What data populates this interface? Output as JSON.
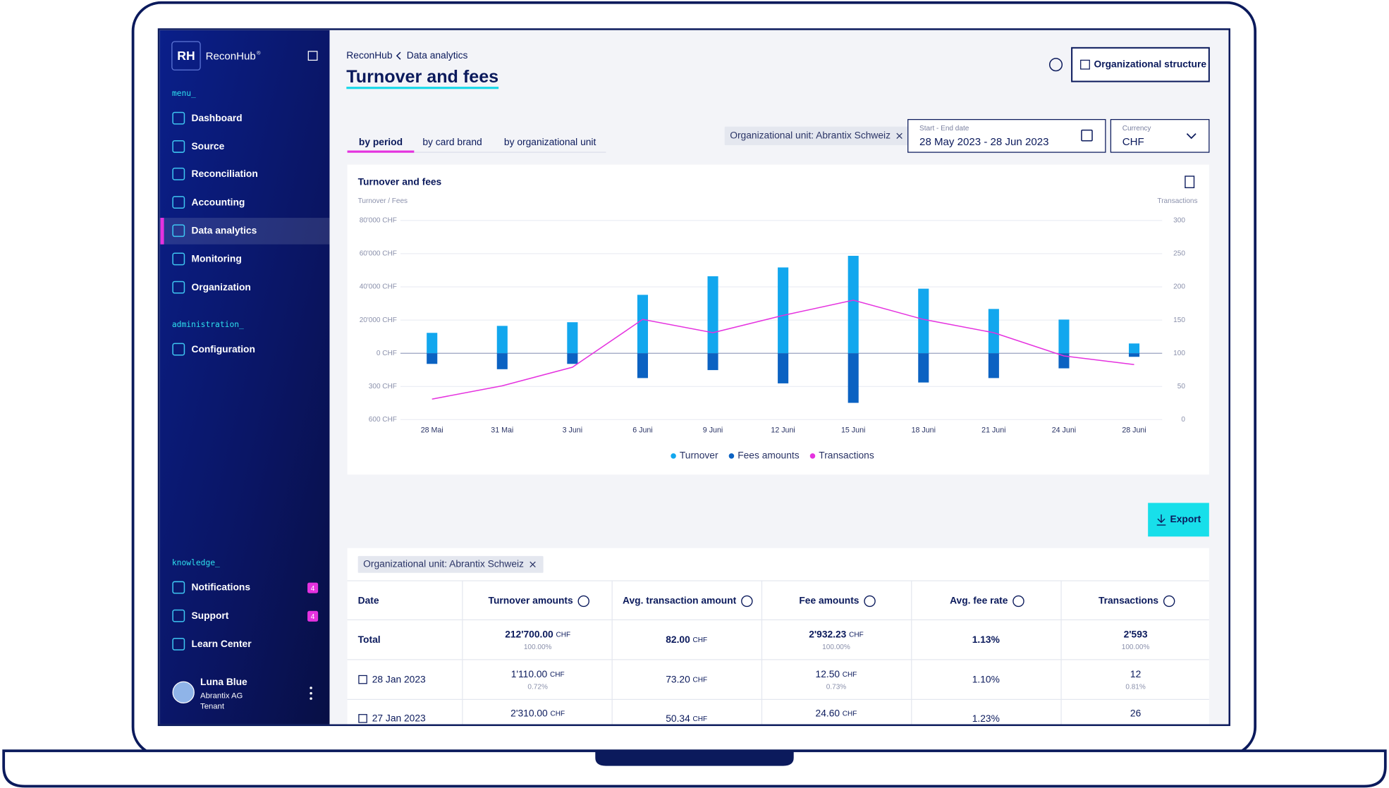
{
  "app": {
    "logo": "RH",
    "name": "ReconHub",
    "trademark": "®"
  },
  "nav": [
    {
      "label": "menu_",
      "items": [
        {
          "label": "Dashboard"
        },
        {
          "label": "Source"
        },
        {
          "label": "Reconciliation"
        },
        {
          "label": "Accounting"
        },
        {
          "label": "Data analytics",
          "active": true
        },
        {
          "label": "Monitoring"
        },
        {
          "label": "Organization"
        }
      ]
    },
    {
      "label": "administration_",
      "items": [
        {
          "label": "Configuration"
        }
      ]
    },
    {
      "label": "knowledge_",
      "items": [
        {
          "label": "Notifications",
          "badge": "4"
        },
        {
          "label": "Support",
          "badge": "4"
        },
        {
          "label": "Learn Center"
        }
      ]
    }
  ],
  "user": {
    "name": "Luna Blue",
    "company": "Abrantix AG",
    "role": "Tenant"
  },
  "header": {
    "breadcrumb": [
      "ReconHub",
      "Data analytics"
    ],
    "title": "Turnover and fees",
    "button": "Organizational structure"
  },
  "tabs": [
    {
      "label": "by period",
      "active": true
    },
    {
      "label": "by card brand"
    },
    {
      "label": "by organizational unit"
    }
  ],
  "filters": {
    "chip": "Organizational unit: Abrantix Schweiz",
    "date": {
      "label": "Start - End date",
      "value": "28 May 2023 - 28 Jun 2023"
    },
    "currency": {
      "label": "Currency",
      "value": "CHF"
    }
  },
  "chart_data": {
    "type": "bar",
    "title": "Turnover and fees",
    "y_label": "Turnover / Fees",
    "y2_label": "Transactions",
    "categories": [
      "28 Mai",
      "31 Mai",
      "3 Juni",
      "6 Juni",
      "9 Juni",
      "12 Juni",
      "15 Juni",
      "18 Juni",
      "21 Juni",
      "24 Juni",
      "28 Juni"
    ],
    "ylim": [
      0,
      80000
    ],
    "yticks": [
      {
        "value": 80000,
        "label": "80'000 CHF"
      },
      {
        "value": 60000,
        "label": "60'000 CHF"
      },
      {
        "value": 40000,
        "label": "40'000 CHF"
      },
      {
        "value": 20000,
        "label": "20'000 CHF"
      },
      {
        "value": 0,
        "label": "0 CHF"
      }
    ],
    "fees_axis": {
      "lim": [
        0,
        600
      ],
      "ticks": [
        {
          "value": 300,
          "label": "300 CHF"
        },
        {
          "value": 600,
          "label": "600 CHF"
        }
      ]
    },
    "y2lim": [
      0,
      300
    ],
    "y2ticks": [
      300,
      250,
      200,
      150,
      100,
      50,
      0
    ],
    "grid": true,
    "series": [
      {
        "name": "Turnover",
        "color": "#12a7ee",
        "values": [
          12300,
          16500,
          18700,
          35200,
          46400,
          51700,
          58700,
          38900,
          26700,
          20300,
          5900
        ]
      },
      {
        "name": "Fees amounts",
        "color": "#0b62c2",
        "axis": "fees",
        "values": [
          96,
          144,
          96,
          224,
          152,
          272,
          448,
          264,
          224,
          136,
          32
        ]
      },
      {
        "name": "Transactions",
        "type": "line",
        "color": "#e532df",
        "axis": "y2",
        "values": [
          31,
          51,
          79,
          151,
          131,
          157,
          180,
          151,
          131,
          96,
          83
        ]
      }
    ]
  },
  "export": "Export",
  "table": {
    "chip": "Organizational unit: Abrantix Schweiz",
    "columns": [
      "Date",
      "Turnover amounts",
      "Avg. transaction amount",
      "Fee amounts",
      "Avg. fee rate",
      "Transactions"
    ],
    "rows": [
      {
        "date": "Total",
        "cells": [
          {
            "value": "212'700.00",
            "unit": "CHF",
            "share": "100.00%"
          },
          {
            "value": "82.00",
            "unit": "CHF"
          },
          {
            "value": "2'932.23",
            "unit": "CHF",
            "share": "100.00%"
          },
          {
            "value": "1.13%"
          },
          {
            "value": "2'593",
            "share": "100.00%"
          }
        ]
      },
      {
        "date": "28 Jan 2023",
        "cells": [
          {
            "value": "1'110.00",
            "unit": "CHF",
            "share": "0.72%"
          },
          {
            "value": "73.20",
            "unit": "CHF"
          },
          {
            "value": "12.50",
            "unit": "CHF",
            "share": "0.73%"
          },
          {
            "value": "1.10%"
          },
          {
            "value": "12",
            "share": "0.81%"
          }
        ]
      },
      {
        "date": "27 Jan 2023",
        "cells": [
          {
            "value": "2'310.00",
            "unit": "CHF"
          },
          {
            "value": "50.34",
            "unit": "CHF"
          },
          {
            "value": "24.60",
            "unit": "CHF"
          },
          {
            "value": "1.23%"
          },
          {
            "value": "26"
          }
        ]
      }
    ]
  }
}
